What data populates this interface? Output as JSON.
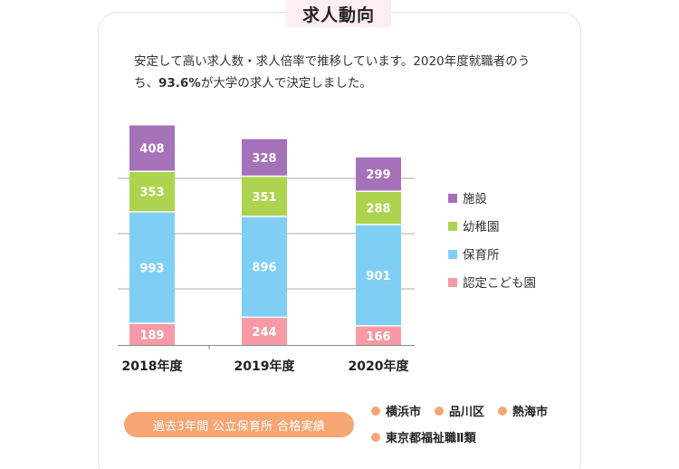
{
  "header": {
    "title": "求人動向"
  },
  "intro": {
    "text_before": "安定して高い求人数・求人倍率で推移しています。2020年度就職者のうち、",
    "highlight": "93.6%",
    "text_after": "が大学の求人で決定しました。"
  },
  "chart_data": {
    "type": "bar",
    "stacked": true,
    "categories": [
      "2018年度",
      "2019年度",
      "2020年度"
    ],
    "series": [
      {
        "name": "認定こども園",
        "color": "#f79aa6",
        "values": [
          189,
          244,
          166
        ]
      },
      {
        "name": "保育所",
        "color": "#7fcff5",
        "values": [
          993,
          896,
          901
        ]
      },
      {
        "name": "幼稚園",
        "color": "#aed34f",
        "values": [
          353,
          351,
          288
        ]
      },
      {
        "name": "施設",
        "color": "#a571b8",
        "values": [
          408,
          328,
          299
        ]
      }
    ],
    "legend_order": [
      "施設",
      "幼稚園",
      "保育所",
      "認定こども園"
    ],
    "legend_position": "right",
    "grid": true
  },
  "footer": {
    "badge": "過去3年間 公立保育所 合格実績",
    "cities": [
      "横浜市",
      "品川区",
      "熱海市",
      "東京都福祉職Ⅱ類"
    ]
  }
}
